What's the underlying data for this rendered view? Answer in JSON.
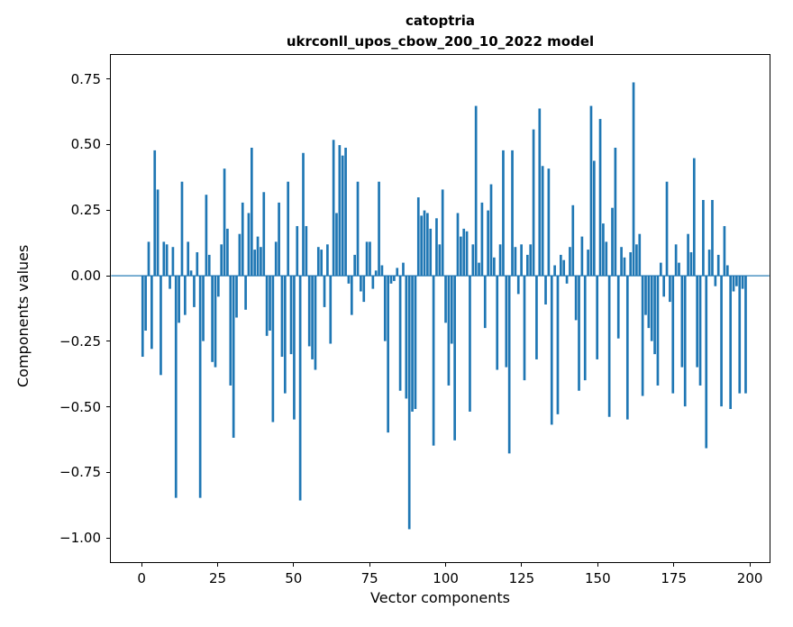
{
  "figure": {
    "title_line1": "catoptria",
    "title_line2": "ukrconll_upos_cbow_200_10_2022 model",
    "background": "#ffffff"
  },
  "chart_data": {
    "type": "bar",
    "title": "catoptria",
    "subtitle": "ukrconll_upos_cbow_200_10_2022 model",
    "xlabel": "Vector components",
    "ylabel": "Components values",
    "bar_color": "#1f77b4",
    "grid": false,
    "legend": "none",
    "xlim": [
      -10.4,
      206.8
    ],
    "ylim": [
      -1.096,
      0.845
    ],
    "x_ticks": [
      0,
      25,
      50,
      75,
      100,
      125,
      150,
      175,
      200
    ],
    "x_tick_labels": [
      "0",
      "25",
      "50",
      "75",
      "100",
      "125",
      "150",
      "175",
      "200"
    ],
    "y_ticks": [
      0.75,
      0.5,
      0.25,
      0.0,
      -0.25,
      -0.5,
      -0.75,
      -1.0
    ],
    "y_tick_labels": [
      "0.75",
      "0.50",
      "0.25",
      "0.00",
      "−0.25",
      "−0.50",
      "−0.75",
      "−1.00"
    ],
    "x_start": 0,
    "values": [
      -0.31,
      -0.21,
      0.13,
      -0.28,
      0.48,
      0.33,
      -0.38,
      0.13,
      0.12,
      -0.05,
      0.11,
      -0.85,
      -0.18,
      0.36,
      -0.15,
      0.13,
      0.02,
      -0.12,
      0.09,
      -0.85,
      -0.25,
      0.31,
      0.08,
      -0.33,
      -0.35,
      -0.08,
      0.12,
      0.41,
      0.18,
      -0.42,
      -0.62,
      -0.16,
      0.16,
      0.28,
      -0.13,
      0.24,
      0.49,
      0.1,
      0.15,
      0.11,
      0.32,
      -0.23,
      -0.21,
      -0.56,
      0.13,
      0.28,
      -0.31,
      -0.45,
      0.36,
      -0.3,
      -0.55,
      0.19,
      -0.86,
      0.47,
      0.19,
      -0.27,
      -0.32,
      -0.36,
      0.11,
      0.1,
      -0.12,
      0.12,
      -0.26,
      0.52,
      0.24,
      0.5,
      0.46,
      0.49,
      -0.03,
      -0.15,
      0.08,
      0.36,
      -0.06,
      -0.1,
      0.13,
      0.13,
      -0.05,
      0.02,
      0.36,
      0.04,
      -0.25,
      -0.6,
      -0.03,
      -0.02,
      0.03,
      -0.44,
      0.05,
      -0.47,
      -0.97,
      -0.52,
      -0.51,
      0.3,
      0.23,
      0.25,
      0.24,
      0.18,
      -0.65,
      0.22,
      0.12,
      0.33,
      -0.18,
      -0.42,
      -0.26,
      -0.63,
      0.24,
      0.15,
      0.18,
      0.17,
      -0.52,
      0.12,
      0.65,
      0.05,
      0.28,
      -0.2,
      0.25,
      0.35,
      0.07,
      -0.36,
      0.12,
      0.48,
      -0.35,
      -0.68,
      0.48,
      0.11,
      -0.07,
      0.12,
      -0.4,
      0.08,
      0.12,
      0.56,
      -0.32,
      0.64,
      0.42,
      -0.11,
      0.41,
      -0.57,
      0.04,
      -0.53,
      0.08,
      0.06,
      -0.03,
      0.11,
      0.27,
      -0.17,
      -0.44,
      0.15,
      -0.4,
      0.1,
      0.65,
      0.44,
      -0.32,
      0.6,
      0.2,
      0.13,
      -0.54,
      0.26,
      0.49,
      -0.24,
      0.11,
      0.07,
      -0.55,
      0.09,
      0.74,
      0.12,
      0.16,
      -0.46,
      -0.15,
      -0.2,
      -0.25,
      -0.3,
      -0.42,
      0.05,
      -0.08,
      0.36,
      -0.1,
      -0.45,
      0.12,
      0.05,
      -0.35,
      -0.5,
      0.16,
      0.09,
      0.45,
      -0.35,
      -0.42,
      0.29,
      -0.66,
      0.1,
      0.29,
      -0.04,
      0.08,
      -0.5,
      0.19,
      0.04,
      -0.51,
      -0.06,
      -0.04,
      -0.45,
      -0.05,
      -0.45
    ]
  }
}
